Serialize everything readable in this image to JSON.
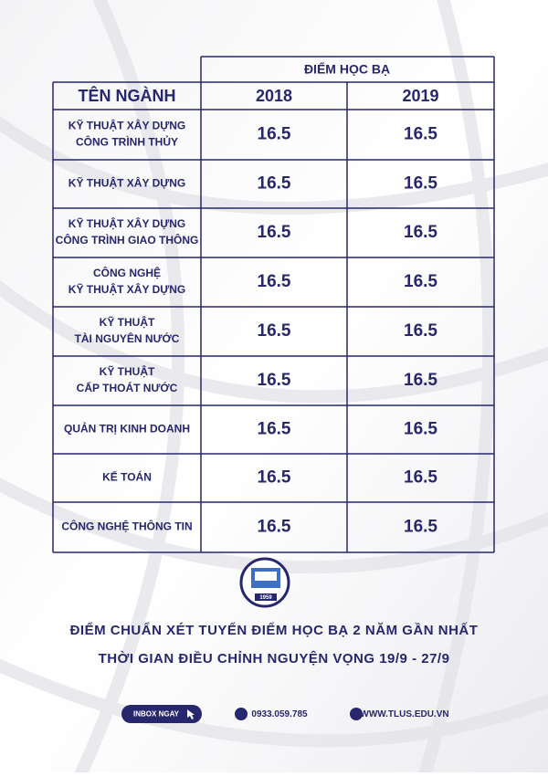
{
  "table": {
    "group_header": "ĐIỂM HỌC BẠ",
    "header": [
      "TÊN NGÀNH",
      "2018",
      "2019"
    ],
    "rows": [
      {
        "name": [
          "KỸ THUẬT XÂY DỰNG",
          "CÔNG TRÌNH THỦY"
        ],
        "values": [
          16.5,
          16.5
        ]
      },
      {
        "name": [
          "KỸ THUẬT XÂY DỰNG"
        ],
        "values": [
          16.5,
          16.5
        ]
      },
      {
        "name": [
          "KỸ THUẬT XÂY DỰNG",
          "CÔNG TRÌNH GIAO THÔNG"
        ],
        "values": [
          16.5,
          16.5
        ]
      },
      {
        "name": [
          "CÔNG NGHỆ",
          "KỸ THUẬT XÂY DỰNG"
        ],
        "values": [
          16.5,
          16.5
        ]
      },
      {
        "name": [
          "KỸ THUẬT",
          "TÀI NGUYÊN NƯỚC"
        ],
        "values": [
          16.5,
          16.5
        ]
      },
      {
        "name": [
          "KỸ THUẬT",
          "CẤP THOÁT NƯỚC"
        ],
        "values": [
          16.5,
          16.5
        ]
      },
      {
        "name": [
          "QUẢN TRỊ KINH DOANH"
        ],
        "values": [
          16.5,
          16.5
        ]
      },
      {
        "name": [
          "KẾ TOÁN"
        ],
        "values": [
          16.5,
          16.5
        ]
      },
      {
        "name": [
          "CÔNG NGHỆ THÔNG TIN"
        ],
        "values": [
          16.5,
          16.5
        ]
      }
    ]
  },
  "logo": {
    "year": "1959"
  },
  "footer": {
    "headline": "ĐIỂM CHUẨN XÉT TUYỂN ĐIỂM HỌC BẠ 2 NĂM GẦN NHẤT",
    "subline": "THỜI GIAN ĐIỀU CHỈNH NGUYỆN VỌNG 19/9 - 27/9",
    "button": "INBOX NGAY",
    "phone": "0933.059.785",
    "website": "WWW.TLUS.EDU.VN"
  }
}
